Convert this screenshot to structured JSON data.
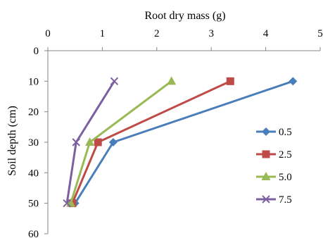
{
  "chart_data": {
    "type": "line",
    "xlabel": "Root dry mass (g)",
    "ylabel": "Soil depth (cm)",
    "x_axis_position": "top",
    "y_axis_inverted": true,
    "xlim": [
      0,
      5
    ],
    "ylim": [
      0,
      60
    ],
    "xticks": [
      0,
      1,
      2,
      3,
      4,
      5
    ],
    "yticks": [
      0,
      10,
      20,
      30,
      40,
      50,
      60
    ],
    "grid": false,
    "legend_position": "right",
    "series": [
      {
        "name": "0.5",
        "color": "#4a7ebb",
        "marker": "diamond",
        "points": [
          [
            4.5,
            10
          ],
          [
            1.2,
            30
          ],
          [
            0.5,
            50
          ]
        ]
      },
      {
        "name": "2.5",
        "color": "#be4b48",
        "marker": "square",
        "points": [
          [
            3.35,
            10
          ],
          [
            0.92,
            30
          ],
          [
            0.45,
            50
          ]
        ]
      },
      {
        "name": "5.0",
        "color": "#98b954",
        "marker": "triangle",
        "points": [
          [
            2.27,
            10
          ],
          [
            0.77,
            30
          ],
          [
            0.42,
            50
          ]
        ]
      },
      {
        "name": "7.5",
        "color": "#7d60a0",
        "marker": "x",
        "points": [
          [
            1.22,
            10
          ],
          [
            0.52,
            30
          ],
          [
            0.35,
            50
          ]
        ]
      }
    ]
  }
}
